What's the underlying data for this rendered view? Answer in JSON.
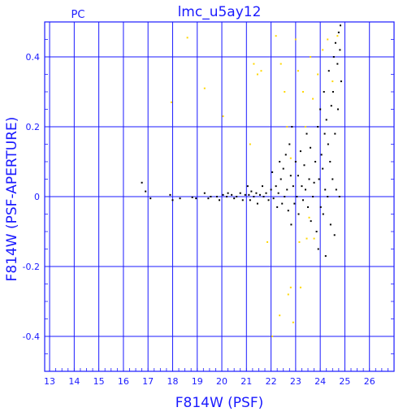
{
  "chart_data": {
    "type": "scatter",
    "title": "lmc_u5ay12",
    "corner_label": "PC",
    "xlabel": "F814W (PSF)",
    "ylabel": "F814W (PSF-APERTURE)",
    "xlim": [
      12.8,
      27.0
    ],
    "ylim": [
      -0.5,
      0.5
    ],
    "x_ticks": [
      13,
      14,
      15,
      16,
      17,
      18,
      19,
      20,
      21,
      22,
      23,
      24,
      25,
      26
    ],
    "y_ticks": [
      -0.4,
      -0.2,
      0,
      0.2,
      0.4
    ],
    "y_tick_labels": [
      "-0.4",
      "-0.2",
      "0",
      "0.2",
      "0.4"
    ],
    "grid": true,
    "colors": {
      "axes": "#1a1aff",
      "grid": "#1a1aff",
      "black_points": "#000000",
      "yellow_points": "#ffd700"
    },
    "series": [
      {
        "color": "black",
        "points": [
          [
            16.75,
            0.04
          ],
          [
            16.9,
            0.015
          ],
          [
            17.1,
            -0.005
          ],
          [
            17.9,
            0.005
          ],
          [
            18.0,
            -0.01
          ],
          [
            18.3,
            -0.005
          ],
          [
            18.8,
            -0.002
          ],
          [
            18.95,
            -0.005
          ],
          [
            19.3,
            0.01
          ],
          [
            19.45,
            -0.005
          ],
          [
            19.55,
            0.0
          ],
          [
            19.8,
            0.0
          ],
          [
            19.9,
            -0.01
          ],
          [
            20.05,
            0.005
          ],
          [
            20.2,
            0.0
          ],
          [
            20.25,
            0.01
          ],
          [
            20.4,
            0.005
          ],
          [
            20.5,
            -0.005
          ],
          [
            20.6,
            0.0
          ],
          [
            20.75,
            0.01
          ],
          [
            20.85,
            -0.01
          ],
          [
            20.95,
            0.005
          ],
          [
            21.05,
            0.03
          ],
          [
            21.1,
            0.005
          ],
          [
            21.15,
            -0.01
          ],
          [
            21.2,
            0.015
          ],
          [
            21.3,
            0.0
          ],
          [
            21.4,
            0.01
          ],
          [
            21.45,
            -0.02
          ],
          [
            21.55,
            0.005
          ],
          [
            21.65,
            0.03
          ],
          [
            21.7,
            0.0
          ],
          [
            21.8,
            0.01
          ],
          [
            21.9,
            -0.01
          ],
          [
            22.0,
            0.02
          ],
          [
            22.05,
            0.07
          ],
          [
            22.1,
            -0.005
          ],
          [
            22.2,
            0.03
          ],
          [
            22.25,
            -0.03
          ],
          [
            22.3,
            0.01
          ],
          [
            22.35,
            0.1
          ],
          [
            22.4,
            0.05
          ],
          [
            22.45,
            -0.02
          ],
          [
            22.5,
            0.08
          ],
          [
            22.55,
            0.0
          ],
          [
            22.6,
            0.12
          ],
          [
            22.65,
            0.02
          ],
          [
            22.7,
            -0.04
          ],
          [
            22.75,
            0.15
          ],
          [
            22.8,
            0.06
          ],
          [
            22.82,
            -0.08
          ],
          [
            22.85,
            0.2
          ],
          [
            22.9,
            0.03
          ],
          [
            22.95,
            -0.02
          ],
          [
            23.0,
            0.1
          ],
          [
            23.05,
            0.0
          ],
          [
            23.1,
            0.06
          ],
          [
            23.12,
            -0.05
          ],
          [
            23.2,
            0.13
          ],
          [
            23.25,
            0.03
          ],
          [
            23.3,
            -0.01
          ],
          [
            23.35,
            0.09
          ],
          [
            23.4,
            0.02
          ],
          [
            23.45,
            0.18
          ],
          [
            23.5,
            -0.03
          ],
          [
            23.55,
            0.05
          ],
          [
            23.6,
            0.14
          ],
          [
            23.62,
            -0.07
          ],
          [
            23.7,
            0.0
          ],
          [
            23.75,
            0.04
          ],
          [
            23.8,
            0.1
          ],
          [
            23.85,
            -0.1
          ],
          [
            23.9,
            0.2
          ],
          [
            23.92,
            -0.15
          ],
          [
            23.95,
            0.05
          ],
          [
            24.0,
            0.25
          ],
          [
            24.02,
            -0.03
          ],
          [
            24.05,
            0.12
          ],
          [
            24.1,
            0.08
          ],
          [
            24.12,
            -0.05
          ],
          [
            24.15,
            0.3
          ],
          [
            24.18,
            0.18
          ],
          [
            24.2,
            0.02
          ],
          [
            24.22,
            -0.17
          ],
          [
            24.25,
            0.22
          ],
          [
            24.3,
            0.0
          ],
          [
            24.32,
            0.15
          ],
          [
            24.35,
            0.36
          ],
          [
            24.4,
            0.1
          ],
          [
            24.42,
            -0.08
          ],
          [
            24.45,
            0.26
          ],
          [
            24.5,
            0.05
          ],
          [
            24.52,
            0.3
          ],
          [
            24.55,
            0.4
          ],
          [
            24.58,
            -0.11
          ],
          [
            24.6,
            0.18
          ],
          [
            24.62,
            0.44
          ],
          [
            24.65,
            0.02
          ],
          [
            24.7,
            0.38
          ],
          [
            24.72,
            0.25
          ],
          [
            24.75,
            0.47
          ],
          [
            24.78,
            0.0
          ],
          [
            24.8,
            0.42
          ],
          [
            24.82,
            0.49
          ],
          [
            24.85,
            0.33
          ]
        ]
      },
      {
        "color": "yellow",
        "points": [
          [
            18.6,
            0.455
          ],
          [
            17.95,
            0.27
          ],
          [
            19.3,
            0.31
          ],
          [
            20.05,
            0.23
          ],
          [
            21.3,
            0.38
          ],
          [
            21.45,
            0.35
          ],
          [
            21.6,
            0.36
          ],
          [
            21.15,
            0.15
          ],
          [
            22.2,
            0.46
          ],
          [
            22.4,
            0.38
          ],
          [
            22.55,
            0.3
          ],
          [
            22.65,
            0.2
          ],
          [
            22.7,
            -0.28
          ],
          [
            22.8,
            -0.26
          ],
          [
            22.8,
            0.11
          ],
          [
            23.0,
            0.45
          ],
          [
            23.1,
            0.36
          ],
          [
            23.2,
            -0.26
          ],
          [
            23.3,
            0.3
          ],
          [
            23.4,
            0.2
          ],
          [
            23.45,
            -0.12
          ],
          [
            23.6,
            0.4
          ],
          [
            23.7,
            0.28
          ],
          [
            23.9,
            0.35
          ],
          [
            24.1,
            0.42
          ],
          [
            24.3,
            0.45
          ],
          [
            24.5,
            0.33
          ],
          [
            24.7,
            0.46
          ],
          [
            22.35,
            -0.34
          ],
          [
            22.9,
            -0.36
          ],
          [
            23.15,
            -0.13
          ],
          [
            22.05,
            -0.4
          ],
          [
            23.55,
            -0.06
          ],
          [
            23.75,
            -0.12
          ],
          [
            21.85,
            -0.13
          ]
        ]
      }
    ]
  }
}
